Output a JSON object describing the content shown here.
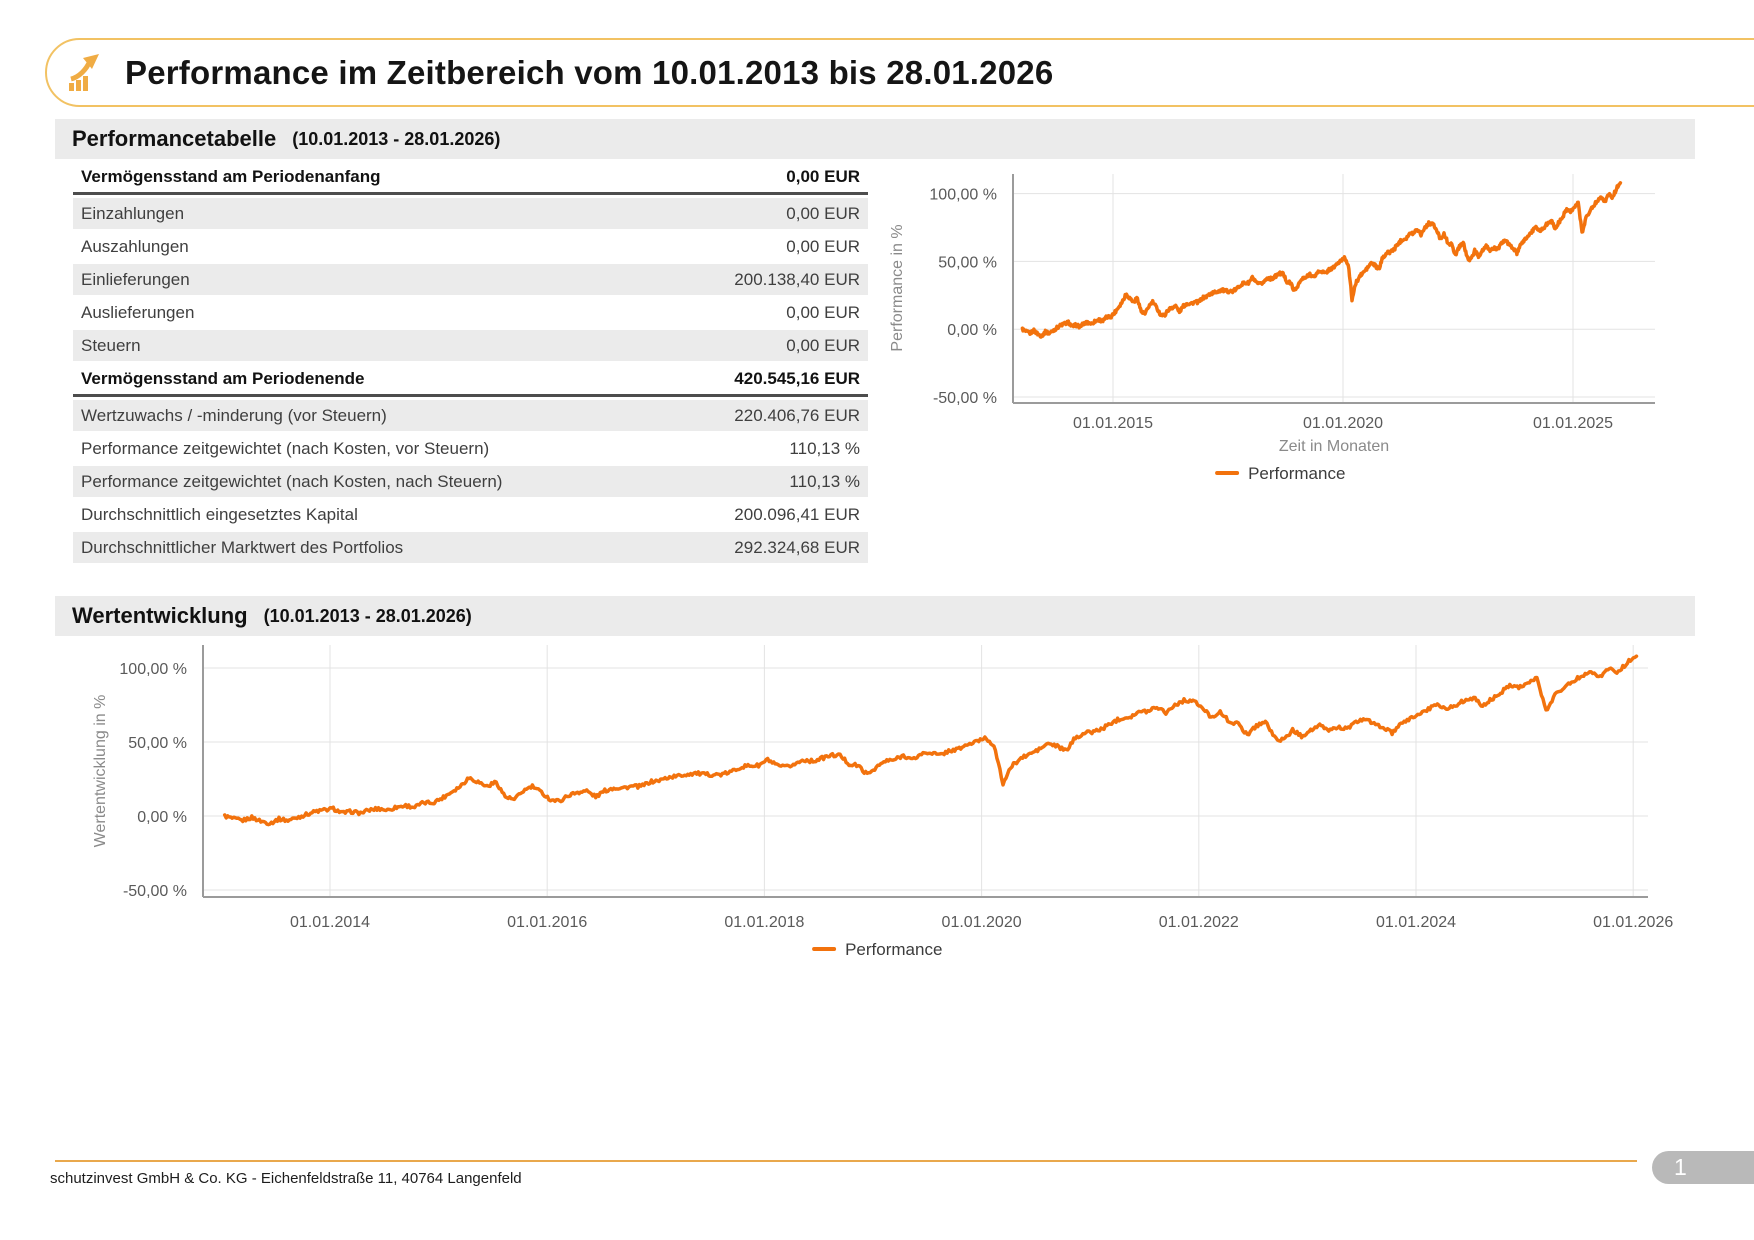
{
  "header": {
    "title": "Performance im Zeitbereich vom 10.01.2013 bis 28.01.2026",
    "icon": "bar-chart-rising-arrow-icon",
    "accent_color": "#F2C263"
  },
  "sections": {
    "performancetabelle": {
      "title": "Performancetabelle",
      "period": "(10.01.2013 - 28.01.2026)"
    },
    "wertentwicklung": {
      "title": "Wertentwicklung",
      "period": "(10.01.2013 - 28.01.2026)"
    }
  },
  "table": {
    "rows": [
      {
        "label": "Vermögensstand am Periodenanfang",
        "value": "0,00 EUR",
        "bold": true
      },
      {
        "label": "Einzahlungen",
        "value": "0,00 EUR"
      },
      {
        "label": "Auszahlungen",
        "value": "0,00 EUR"
      },
      {
        "label": "Einlieferungen",
        "value": "200.138,40 EUR"
      },
      {
        "label": "Auslieferungen",
        "value": "0,00 EUR"
      },
      {
        "label": "Steuern",
        "value": "0,00 EUR"
      },
      {
        "label": "Vermögensstand am Periodenende",
        "value": "420.545,16 EUR",
        "bold": true
      },
      {
        "label": "Wertzuwachs / -minderung (vor Steuern)",
        "value": "220.406,76 EUR"
      },
      {
        "label": "Performance zeitgewichtet (nach Kosten, vor Steuern)",
        "value": "110,13 %"
      },
      {
        "label": "Performance zeitgewichtet (nach Kosten, nach Steuern)",
        "value": "110,13 %"
      },
      {
        "label": "Durchschnittlich eingesetztes Kapital",
        "value": "200.096,41 EUR"
      },
      {
        "label": "Durchschnittlicher Marktwert des Portfolios",
        "value": "292.324,68 EUR"
      }
    ]
  },
  "chart_data": [
    {
      "type": "line",
      "name": "performance-overview-chart",
      "ylabel": "Performance in %",
      "xlabel": "Zeit in Monaten",
      "grid": true,
      "legend_position": "bottom",
      "y_domain": [
        -55,
        113
      ],
      "x_domain_years": [
        2012.8,
        2026.8
      ],
      "y_ticks": [
        {
          "v": 100,
          "label": "100,00 %"
        },
        {
          "v": 50,
          "label": "50,00 %"
        },
        {
          "v": 0,
          "label": "0,00 %"
        },
        {
          "v": -50,
          "label": "-50,00 %"
        }
      ],
      "x_ticks": [
        {
          "t": 2015,
          "label": "01.01.2015"
        },
        {
          "t": 2020,
          "label": "01.01.2020"
        },
        {
          "t": 2025,
          "label": "01.01.2025"
        }
      ],
      "series": [
        {
          "name": "Performance",
          "color": "#F2720D",
          "start_year": 2013.03,
          "interval": "monthly",
          "values": [
            0,
            -2,
            -3,
            -1,
            -3.5,
            -5,
            -2,
            -3,
            -1,
            1,
            3,
            4,
            5,
            2,
            3,
            2,
            4,
            5,
            4,
            6,
            7,
            6,
            9,
            9,
            12,
            16,
            20,
            26,
            23,
            20,
            23,
            13,
            11,
            17,
            20,
            16,
            11,
            10,
            14,
            16,
            17,
            13,
            17,
            19,
            19,
            20,
            20,
            23,
            24,
            26,
            27,
            28,
            29,
            28,
            28,
            28,
            30,
            33,
            34,
            34,
            38,
            34,
            33,
            35,
            38,
            37,
            39,
            41,
            41,
            35,
            34,
            28,
            33,
            37,
            38,
            41,
            38,
            42,
            43,
            41,
            44,
            45,
            48,
            50,
            53,
            48,
            22,
            34,
            39,
            42,
            45,
            49,
            47,
            44,
            53,
            56,
            57,
            59,
            63,
            66,
            67,
            70,
            71,
            74,
            70,
            75,
            78,
            78,
            73,
            67,
            70,
            64,
            62,
            55,
            61,
            64,
            53,
            51,
            58,
            54,
            58,
            61,
            58,
            60,
            59,
            63,
            66,
            62,
            60,
            56,
            62,
            66,
            69,
            72,
            76,
            72,
            75,
            78,
            80,
            74,
            79,
            83,
            89,
            87,
            90,
            93,
            71,
            82,
            87,
            91,
            95,
            98,
            94,
            100,
            97,
            104,
            108
          ]
        }
      ]
    },
    {
      "type": "line",
      "name": "wertentwicklung-chart",
      "ylabel": "Wertentwicklung in %",
      "xlabel": "",
      "grid": true,
      "legend_position": "bottom",
      "y_domain": [
        -55,
        113
      ],
      "x_domain_years": [
        2012.8,
        2026.3
      ],
      "y_ticks": [
        {
          "v": 100,
          "label": "100,00 %"
        },
        {
          "v": 50,
          "label": "50,00 %"
        },
        {
          "v": 0,
          "label": "0,00 %"
        },
        {
          "v": -50,
          "label": "-50,00 %"
        }
      ],
      "x_ticks": [
        {
          "t": 2014,
          "label": "01.01.2014"
        },
        {
          "t": 2016,
          "label": "01.01.2016"
        },
        {
          "t": 2018,
          "label": "01.01.2018"
        },
        {
          "t": 2020,
          "label": "01.01.2020"
        },
        {
          "t": 2022,
          "label": "01.01.2022"
        },
        {
          "t": 2024,
          "label": "01.01.2024"
        },
        {
          "t": 2026,
          "label": "01.01.2026"
        }
      ],
      "series": [
        {
          "name": "Performance",
          "color": "#F2720D",
          "start_year": 2013.03,
          "interval": "monthly",
          "values_ref": 0
        }
      ]
    }
  ],
  "footer": {
    "company": "schutzinvest GmbH & Co. KG - Eichenfeldstraße 11, 40764 Langenfeld",
    "page_number": "1"
  }
}
